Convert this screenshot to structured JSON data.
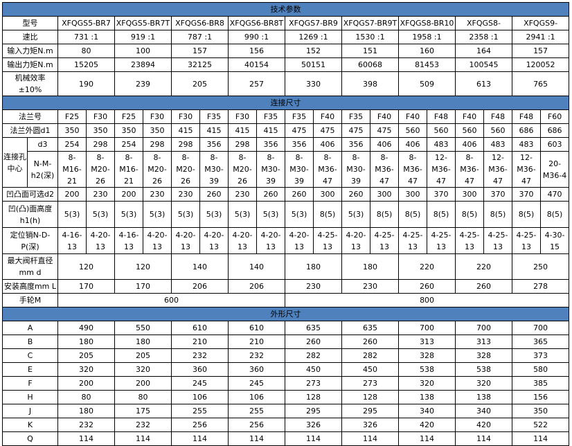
{
  "colors": {
    "section_header_bg": "#4F81BD",
    "border": "#000000"
  },
  "tech": {
    "title": "技术参数",
    "rows": [
      {
        "label": "型号",
        "values": [
          "XFQGS5-BR7",
          "XFQGS5-BR7T",
          "XFQGS6-BR8",
          "XFQGS6-BR8T",
          "XFQGS7-BR9",
          "XFQGS7-BR9T",
          "XFQGS8-BR10",
          "XFQGS8-",
          "XFQGS9-"
        ]
      },
      {
        "label": "速比",
        "values": [
          "731 :1",
          "919 :1",
          "787 :1",
          "990 :1",
          "1269 :1",
          "1530 :1",
          "1958 :1",
          "2358 :1",
          "2941 :1"
        ]
      },
      {
        "label": "输入力矩N.m",
        "values": [
          "80",
          "100",
          "157",
          "156",
          "152",
          "151",
          "160",
          "164",
          "157"
        ]
      },
      {
        "label": "输出力矩N.m",
        "values": [
          "15205",
          "23894",
          "32125",
          "40154",
          "50151",
          "60068",
          "81453",
          "100545",
          "120052"
        ]
      },
      {
        "label": "机械效率±10%",
        "values": [
          "190",
          "239",
          "205",
          "257",
          "330",
          "398",
          "509",
          "613",
          "765"
        ]
      }
    ]
  },
  "conn": {
    "title": "连接尺寸",
    "flange_no": {
      "label": "法兰号",
      "values": [
        "F25",
        "F30",
        "F25",
        "F30",
        "F30",
        "F35",
        "F30",
        "F35",
        "F35",
        "F40",
        "F35",
        "F40",
        "F40",
        "F48",
        "F40",
        "F48",
        "F48",
        "F60"
      ]
    },
    "flange_d1": {
      "label": "法兰外圆d1",
      "values": [
        "350",
        "350",
        "350",
        "350",
        "415",
        "415",
        "415",
        "415",
        "475",
        "475",
        "475",
        "475",
        "560",
        "560",
        "560",
        "560",
        "686",
        "686"
      ]
    },
    "hole_group_label": "连接孔中心",
    "d3": {
      "label": "d3",
      "values": [
        "254",
        "298",
        "254",
        "298",
        "298",
        "356",
        "298",
        "356",
        "356",
        "406",
        "356",
        "406",
        "406",
        "483",
        "406",
        "483",
        "483",
        "603"
      ]
    },
    "nmh2": {
      "label": "N-M-h2(深)",
      "values": [
        "8-M16-21",
        "8-M20-26",
        "8-M16-21",
        "8-M20-26",
        "8-M20-26",
        "8-M30-39",
        "8-M20-26",
        "8-M30-39",
        "8-M30-39",
        "8-M36-47",
        "8-M30-39",
        "8-M36-47",
        "8-M36-47",
        "12-M36-47",
        "8-M36-47",
        "12-M36-47",
        "12-M36-47",
        "20-M36-4"
      ]
    },
    "d2": {
      "label": "凹凸面可选d2",
      "values": [
        "200",
        "230",
        "200",
        "230",
        "230",
        "260",
        "230",
        "260",
        "260",
        "300",
        "260",
        "300",
        "300",
        "370",
        "300",
        "370",
        "370",
        "470"
      ]
    },
    "h1": {
      "label": "凹(凸)面高度h1(h)",
      "values": [
        "5(3)",
        "5(3)",
        "5(3)",
        "5(3)",
        "5(3)",
        "5(3)",
        "5(3)",
        "5(3)",
        "5(3)",
        "8(5)",
        "5(3)",
        "8(5)",
        "8(5)",
        "8(5)",
        "8(5)",
        "8(5)",
        "8(5)",
        "8(5)"
      ]
    },
    "pin": {
      "label": "定位销N-D-P(深)",
      "values": [
        "4-16-13",
        "4-20-13",
        "4-16-13",
        "4-20-13",
        "4-20-13",
        "4-20-13",
        "4-20-13",
        "4-20-13",
        "4-20-13",
        "4-25-13",
        "4-20-13",
        "4-25-13",
        "4-25-13",
        "4-25-13",
        "4-25-13",
        "4-25-13",
        "4-25-13",
        "4-30-15"
      ]
    },
    "stem": {
      "label": "最大阀杆直径mm d",
      "values": [
        "120",
        "120",
        "140",
        "140",
        "180",
        "180",
        "220",
        "220",
        "250"
      ]
    },
    "height": {
      "label": "安装高度mm L",
      "values": [
        "170",
        "170",
        "206",
        "206",
        "230",
        "230",
        "260",
        "260",
        "278"
      ]
    },
    "handwheel": {
      "label": "手轮M",
      "values": [
        "600",
        "800"
      ]
    }
  },
  "outline": {
    "title": "外形尺寸",
    "rows": [
      {
        "label": "A",
        "values": [
          "490",
          "550",
          "610",
          "610",
          "635",
          "635",
          "700",
          "700",
          "700"
        ]
      },
      {
        "label": "B",
        "values": [
          "180",
          "180",
          "210",
          "210",
          "260",
          "260",
          "313",
          "313",
          "365"
        ]
      },
      {
        "label": "C",
        "values": [
          "205",
          "205",
          "232",
          "232",
          "282",
          "282",
          "328",
          "328",
          "373"
        ]
      },
      {
        "label": "E",
        "values": [
          "320",
          "320",
          "360",
          "360",
          "450",
          "450",
          "538",
          "538",
          "580"
        ]
      },
      {
        "label": "F",
        "values": [
          "200",
          "200",
          "245",
          "245",
          "273",
          "273",
          "320",
          "320",
          "385"
        ]
      },
      {
        "label": "H",
        "values": [
          "80",
          "80",
          "106",
          "106",
          "128",
          "128",
          "138",
          "138",
          "156"
        ]
      },
      {
        "label": "J",
        "values": [
          "180",
          "175",
          "255",
          "255",
          "295",
          "295",
          "340",
          "340",
          "350"
        ]
      },
      {
        "label": "K",
        "values": [
          "232",
          "232",
          "256",
          "256",
          "326",
          "326",
          "420",
          "420",
          "522"
        ]
      },
      {
        "label": "Q",
        "values": [
          "114",
          "114",
          "114",
          "114",
          "114",
          "114",
          "114",
          "114",
          "114"
        ]
      }
    ]
  }
}
